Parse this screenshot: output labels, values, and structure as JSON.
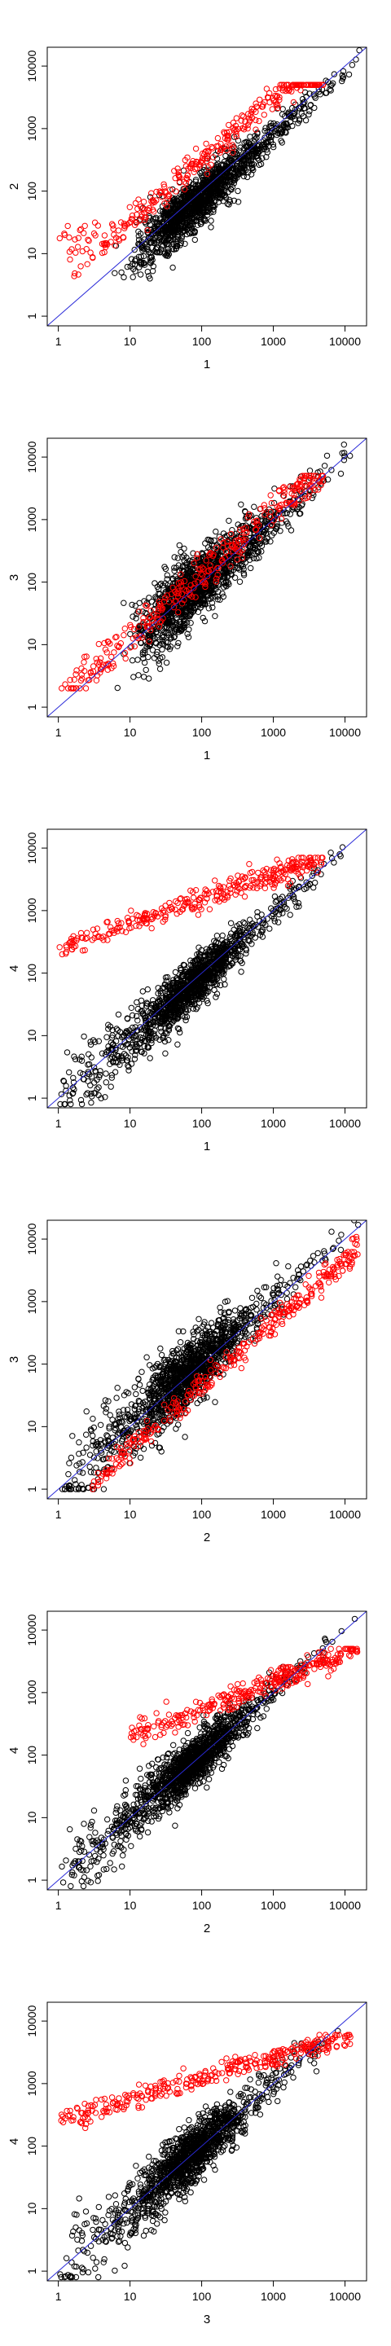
{
  "colors": {
    "points": "#000000",
    "highlight": "#ff0000",
    "reference_line": "#2a2ad8"
  },
  "chart_data": [
    {
      "type": "scatter",
      "scale": "log-log",
      "xlabel": "1",
      "ylabel": "2",
      "xlim": [
        0.7,
        20000
      ],
      "ylim": [
        0.7,
        20000
      ],
      "xticks": [
        "1",
        "10",
        "100",
        "1000",
        "10000"
      ],
      "yticks": [
        "1",
        "10",
        "100",
        "1000",
        "10000"
      ],
      "reference_line": "y = x",
      "bulk": {
        "x_range": [
          10,
          18000
        ],
        "y_range": [
          3,
          20000
        ],
        "ratio": 0.8,
        "spread": 0.55
      },
      "highlight": {
        "x_range": [
          1,
          5000
        ],
        "y_range": [
          4,
          5000
        ],
        "ratio": 3.0,
        "spread": 0.35,
        "floor": 4
      }
    },
    {
      "type": "scatter",
      "scale": "log-log",
      "xlabel": "1",
      "ylabel": "3",
      "xlim": [
        0.7,
        20000
      ],
      "ylim": [
        0.7,
        20000
      ],
      "xticks": [
        "1",
        "10",
        "100",
        "1000",
        "10000"
      ],
      "yticks": [
        "1",
        "10",
        "100",
        "1000",
        "10000"
      ],
      "reference_line": "y = x",
      "bulk": {
        "x_range": [
          10,
          18000
        ],
        "y_range": [
          2,
          20000
        ],
        "ratio": 1.0,
        "spread": 0.75
      },
      "highlight": {
        "x_range": [
          1,
          5000
        ],
        "y_range": [
          2,
          5000
        ],
        "ratio": 1.3,
        "spread": 0.45
      }
    },
    {
      "type": "scatter",
      "scale": "log-log",
      "xlabel": "1",
      "ylabel": "4",
      "xlim": [
        0.7,
        20000
      ],
      "ylim": [
        0.7,
        20000
      ],
      "xticks": [
        "1",
        "10",
        "100",
        "1000",
        "10000"
      ],
      "yticks": [
        "1",
        "10",
        "100",
        "1000",
        "10000"
      ],
      "reference_line": "y = x",
      "bulk": {
        "x_range": [
          1,
          18000
        ],
        "y_range": [
          0.8,
          20000
        ],
        "ratio": 0.9,
        "spread": 0.55
      },
      "highlight": {
        "x_range": [
          1,
          5000
        ],
        "y_range": [
          200,
          7000
        ],
        "ratio": 1.0,
        "spread": 0.3,
        "flat_start": 250
      }
    },
    {
      "type": "scatter",
      "scale": "log-log",
      "xlabel": "2",
      "ylabel": "3",
      "xlim": [
        0.7,
        20000
      ],
      "ylim": [
        0.7,
        20000
      ],
      "xticks": [
        "1",
        "10",
        "100",
        "1000",
        "10000"
      ],
      "yticks": [
        "1",
        "10",
        "100",
        "1000",
        "10000"
      ],
      "reference_line": "y = x",
      "bulk": {
        "x_range": [
          1,
          18000
        ],
        "y_range": [
          1,
          20000
        ],
        "ratio": 1.1,
        "spread": 0.7
      },
      "highlight": {
        "x_range": [
          3,
          15000
        ],
        "y_range": [
          1,
          12000
        ],
        "ratio": 0.45,
        "spread": 0.3
      }
    },
    {
      "type": "scatter",
      "scale": "log-log",
      "xlabel": "2",
      "ylabel": "4",
      "xlim": [
        0.7,
        20000
      ],
      "ylim": [
        0.7,
        20000
      ],
      "xticks": [
        "1",
        "10",
        "100",
        "1000",
        "10000"
      ],
      "yticks": [
        "1",
        "10",
        "100",
        "1000",
        "10000"
      ],
      "reference_line": "y = x",
      "bulk": {
        "x_range": [
          1,
          18000
        ],
        "y_range": [
          0.8,
          20000
        ],
        "ratio": 1.0,
        "spread": 0.55
      },
      "highlight": {
        "x_range": [
          10,
          15000
        ],
        "y_range": [
          150,
          5000
        ],
        "ratio": 1.0,
        "spread": 0.3,
        "flat_start": 200
      }
    },
    {
      "type": "scatter",
      "scale": "log-log",
      "xlabel": "3",
      "ylabel": "4",
      "xlim": [
        0.7,
        20000
      ],
      "ylim": [
        0.7,
        20000
      ],
      "xticks": [
        "1",
        "10",
        "100",
        "1000",
        "10000"
      ],
      "yticks": [
        "1",
        "10",
        "100",
        "1000",
        "10000"
      ],
      "reference_line": "y = x",
      "bulk": {
        "x_range": [
          1,
          18000
        ],
        "y_range": [
          0.8,
          20000
        ],
        "ratio": 1.0,
        "spread": 0.6
      },
      "highlight": {
        "x_range": [
          1,
          12000
        ],
        "y_range": [
          180,
          6000
        ],
        "ratio": 1.0,
        "spread": 0.3,
        "flat_start": 250
      }
    }
  ]
}
